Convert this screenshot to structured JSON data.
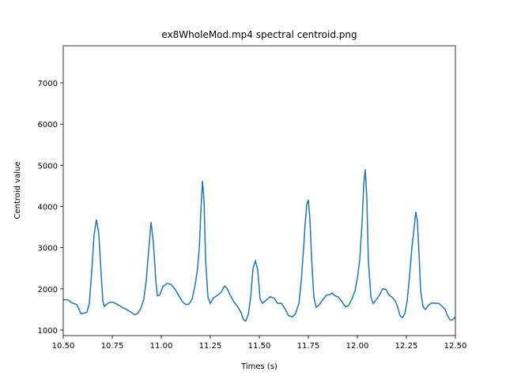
{
  "chart_data": {
    "type": "line",
    "title": "ex8WholeMod.mp4 spectral centroid.png",
    "xlabel": "Times (s)",
    "ylabel": "Centroid value",
    "x": [
      10.5,
      10.524,
      10.548,
      10.569,
      10.581,
      10.589,
      10.605,
      10.621,
      10.633,
      10.645,
      10.657,
      10.669,
      10.681,
      10.694,
      10.702,
      10.71,
      10.73,
      10.75,
      10.774,
      10.798,
      10.823,
      10.847,
      10.863,
      10.879,
      10.895,
      10.911,
      10.923,
      10.935,
      10.948,
      10.96,
      10.972,
      10.98,
      10.992,
      11.008,
      11.028,
      11.048,
      11.069,
      11.089,
      11.109,
      11.125,
      11.141,
      11.157,
      11.173,
      11.185,
      11.194,
      11.202,
      11.21,
      11.218,
      11.226,
      11.238,
      11.25,
      11.266,
      11.286,
      11.306,
      11.323,
      11.335,
      11.351,
      11.371,
      11.391,
      11.407,
      11.419,
      11.431,
      11.444,
      11.456,
      11.468,
      11.48,
      11.492,
      11.504,
      11.516,
      11.536,
      11.556,
      11.577,
      11.593,
      11.613,
      11.633,
      11.649,
      11.669,
      11.685,
      11.702,
      11.714,
      11.726,
      11.734,
      11.742,
      11.75,
      11.758,
      11.766,
      11.778,
      11.79,
      11.806,
      11.827,
      11.843,
      11.859,
      11.871,
      11.887,
      11.903,
      11.919,
      11.94,
      11.956,
      11.972,
      11.988,
      12.0,
      12.012,
      12.024,
      12.032,
      12.04,
      12.048,
      12.056,
      12.069,
      12.081,
      12.097,
      12.113,
      12.129,
      12.145,
      12.161,
      12.181,
      12.194,
      12.206,
      12.218,
      12.23,
      12.242,
      12.254,
      12.266,
      12.278,
      12.29,
      12.298,
      12.306,
      12.315,
      12.323,
      12.335,
      12.347,
      12.363,
      12.379,
      12.395,
      12.415,
      12.431,
      12.448,
      12.46,
      12.472,
      12.484,
      12.5
    ],
    "series": [
      {
        "name": "centroid",
        "color": "#1f77b4",
        "values": [
          1740,
          1730,
          1650,
          1620,
          1500,
          1400,
          1410,
          1430,
          1650,
          2400,
          3300,
          3680,
          3350,
          2300,
          1700,
          1570,
          1660,
          1680,
          1630,
          1560,
          1500,
          1430,
          1370,
          1400,
          1520,
          1750,
          2200,
          2900,
          3620,
          3100,
          2200,
          1830,
          1850,
          2050,
          2130,
          2110,
          2000,
          1840,
          1680,
          1620,
          1630,
          1750,
          2100,
          2500,
          3000,
          3900,
          4620,
          4150,
          2700,
          1800,
          1650,
          1780,
          1840,
          1920,
          2070,
          2020,
          1850,
          1680,
          1560,
          1420,
          1250,
          1220,
          1380,
          1800,
          2500,
          2680,
          2450,
          1750,
          1650,
          1730,
          1810,
          1770,
          1650,
          1650,
          1500,
          1350,
          1320,
          1400,
          1650,
          2200,
          3000,
          3600,
          4050,
          4160,
          3700,
          2800,
          1800,
          1550,
          1620,
          1760,
          1850,
          1860,
          1900,
          1830,
          1800,
          1700,
          1560,
          1600,
          1750,
          1950,
          2250,
          2700,
          3600,
          4500,
          4900,
          4250,
          2700,
          1800,
          1640,
          1740,
          1850,
          2000,
          1990,
          1850,
          1780,
          1700,
          1550,
          1350,
          1300,
          1400,
          1700,
          2300,
          3000,
          3500,
          3870,
          3650,
          2800,
          1950,
          1560,
          1500,
          1600,
          1660,
          1650,
          1650,
          1580,
          1500,
          1350,
          1250,
          1240,
          1320
        ]
      }
    ],
    "xlim": [
      10.5,
      12.5
    ],
    "xticks": [
      {
        "value": 10.5,
        "label": "10.50"
      },
      {
        "value": 10.75,
        "label": "10.75"
      },
      {
        "value": 11.0,
        "label": "11.00"
      },
      {
        "value": 11.25,
        "label": "11.25"
      },
      {
        "value": 11.5,
        "label": "11.50"
      },
      {
        "value": 11.75,
        "label": "11.75"
      },
      {
        "value": 12.0,
        "label": "12.00"
      },
      {
        "value": 12.25,
        "label": "12.25"
      },
      {
        "value": 12.5,
        "label": "12.50"
      }
    ],
    "ylim": [
      866,
      7900
    ],
    "yticks": [
      1000,
      2000,
      3000,
      4000,
      5000,
      6000,
      7000
    ]
  }
}
